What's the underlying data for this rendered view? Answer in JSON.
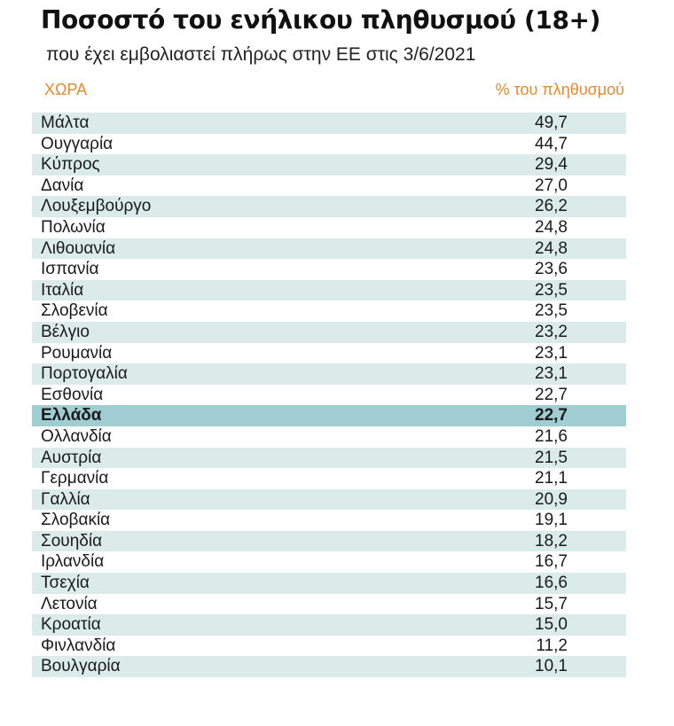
{
  "title": "Ποσοστό του ενήλικου πληθυσμού (18+)",
  "subtitle": "που έχει εμβολιαστεί πλήρως στην ΕΕ στις 3/6/2021",
  "columns": {
    "country": "ΧΩΡΑ",
    "value": "% του πληθυσμού"
  },
  "colors": {
    "header_text": "#e8892b",
    "row_alt": "#dbebea",
    "row_highlight": "#9fcdd1"
  },
  "highlighted_country": "Ελλάδα",
  "chart_data": {
    "type": "table",
    "title": "Ποσοστό του ενήλικου πληθυσμού (18+)",
    "subtitle": "που έχει εμβολιαστεί πλήρως στην ΕΕ στις 3/6/2021",
    "columns": [
      "ΧΩΡΑ",
      "% του πληθυσμού"
    ],
    "rows": [
      {
        "country": "Μάλτα",
        "value": "49,7"
      },
      {
        "country": "Ουγγαρία",
        "value": "44,7"
      },
      {
        "country": "Κύπρος",
        "value": "29,4"
      },
      {
        "country": "Δανία",
        "value": "27,0"
      },
      {
        "country": "Λουξεμβούργο",
        "value": "26,2"
      },
      {
        "country": "Πολωνία",
        "value": "24,8"
      },
      {
        "country": "Λιθουανία",
        "value": "24,8"
      },
      {
        "country": "Ισπανία",
        "value": "23,6"
      },
      {
        "country": "Ιταλία",
        "value": "23,5"
      },
      {
        "country": "Σλοβενία",
        "value": "23,5"
      },
      {
        "country": "Βέλγιο",
        "value": "23,2"
      },
      {
        "country": "Ρουμανία",
        "value": "23,1"
      },
      {
        "country": "Πορτογαλία",
        "value": "23,1"
      },
      {
        "country": "Εσθονία",
        "value": "22,7"
      },
      {
        "country": "Ελλάδα",
        "value": "22,7"
      },
      {
        "country": "Ολλανδία",
        "value": "21,6"
      },
      {
        "country": "Αυστρία",
        "value": "21,5"
      },
      {
        "country": "Γερμανία",
        "value": "21,1"
      },
      {
        "country": "Γαλλία",
        "value": "20,9"
      },
      {
        "country": "Σλοβακία",
        "value": "19,1"
      },
      {
        "country": "Σουηδία",
        "value": "18,2"
      },
      {
        "country": "Ιρλανδία",
        "value": "16,7"
      },
      {
        "country": "Τσεχία",
        "value": "16,6"
      },
      {
        "country": "Λετονία",
        "value": "15,7"
      },
      {
        "country": "Κροατία",
        "value": "15,0"
      },
      {
        "country": "Φινλανδία",
        "value": "11,2"
      },
      {
        "country": "Βουλγαρία",
        "value": "10,1"
      }
    ]
  }
}
